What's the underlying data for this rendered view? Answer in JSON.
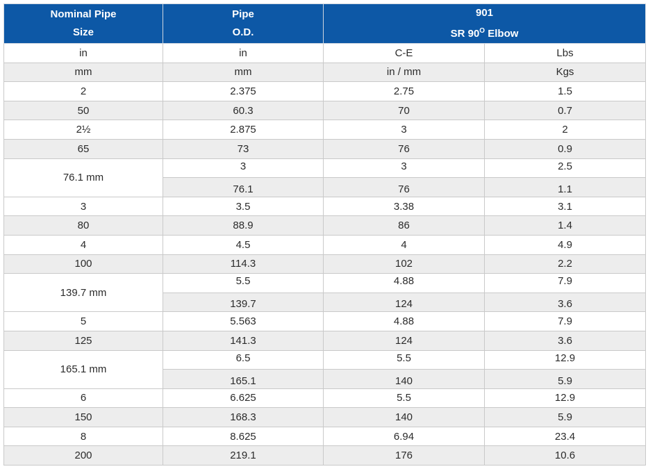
{
  "header": {
    "col1_line1": "Nominal Pipe",
    "col1_line2": "Size",
    "col2_line1": "Pipe",
    "col2_line2": "O.D.",
    "col3_line1": "901",
    "col3_line2": "SR 90",
    "col3_sup": "O",
    "col3_line2_end": " Elbow"
  },
  "units_row1": [
    "in",
    "in",
    "C-E",
    "Lbs"
  ],
  "units_row2": [
    "mm",
    "mm",
    "in / mm",
    "Kgs"
  ],
  "rows": [
    [
      "2",
      "2.375",
      "2.75",
      "1.5"
    ],
    [
      "50",
      "60.3",
      "70",
      "0.7"
    ],
    [
      "2½",
      "2.875",
      "3",
      "2"
    ],
    [
      "65",
      "73",
      "76",
      "0.9"
    ],
    [
      "76.1 mm",
      "3",
      "3",
      "2.5"
    ],
    [
      "",
      "76.1",
      "76",
      "1.1"
    ],
    [
      "3",
      "3.5",
      "3.38",
      "3.1"
    ],
    [
      "80",
      "88.9",
      "86",
      "1.4"
    ],
    [
      "4",
      "4.5",
      "4",
      "4.9"
    ],
    [
      "100",
      "114.3",
      "102",
      "2.2"
    ],
    [
      "139.7 mm",
      "5.5",
      "4.88",
      "7.9"
    ],
    [
      "",
      "139.7",
      "124",
      "3.6"
    ],
    [
      "5",
      "5.563",
      "4.88",
      "7.9"
    ],
    [
      "125",
      "141.3",
      "124",
      "3.6"
    ],
    [
      "165.1 mm",
      "6.5",
      "5.5",
      "12.9"
    ],
    [
      "",
      "165.1",
      "140",
      "5.9"
    ],
    [
      "6",
      "6.625",
      "5.5",
      "12.9"
    ],
    [
      "150",
      "168.3",
      "140",
      "5.9"
    ],
    [
      "8",
      "8.625",
      "6.94",
      "23.4"
    ],
    [
      "200",
      "219.1",
      "176",
      "10.6"
    ]
  ],
  "colors": {
    "header_bg": "#0d58a6",
    "header_text": "#ffffff",
    "stripe": "#ededed"
  }
}
